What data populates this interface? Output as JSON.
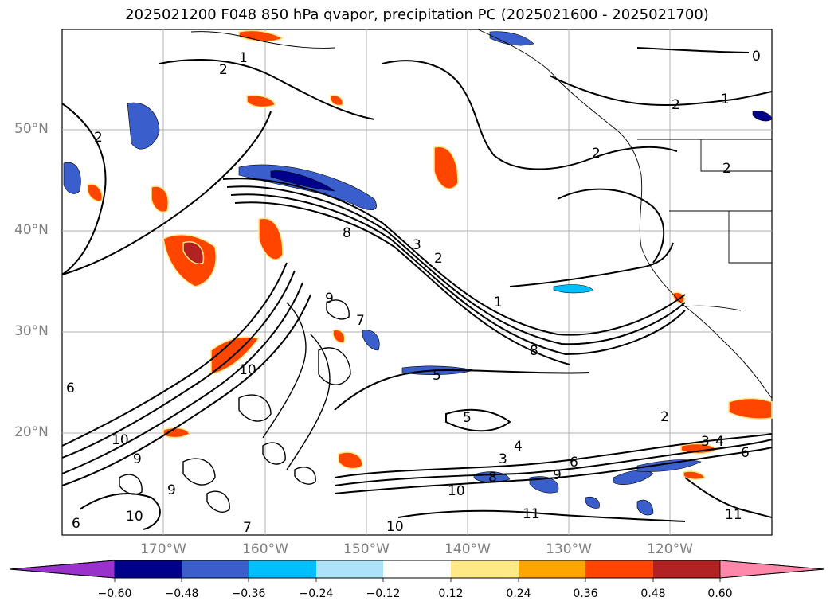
{
  "title": "2025021200 F048 850 hPa qvapor, precipitation PC (2025021600 - 2025021700)",
  "map": {
    "lat_labels": [
      "50°N",
      "40°N",
      "30°N",
      "20°N"
    ],
    "lon_labels": [
      "170°W",
      "160°W",
      "150°W",
      "140°W",
      "130°W",
      "120°W"
    ],
    "contour_labels": [
      "0",
      "1",
      "2",
      "2",
      "1",
      "2",
      "2",
      "2",
      "8",
      "2",
      "3",
      "1",
      "8",
      "9",
      "7",
      "10",
      "5",
      "6",
      "10",
      "9",
      "5",
      "4",
      "3",
      "6",
      "8",
      "9",
      "10",
      "11",
      "11",
      "2",
      "3",
      "4",
      "6",
      "6",
      "9",
      "10",
      "10",
      "7"
    ]
  },
  "colorbar": {
    "tick_labels": [
      "−0.60",
      "−0.48",
      "−0.36",
      "−0.24",
      "−0.12",
      "0.12",
      "0.24",
      "0.36",
      "0.48",
      "0.60"
    ],
    "colors": [
      "#9932CC",
      "#00008B",
      "#3A5FCD",
      "#00BFFF",
      "#ADE3FA",
      "#FFFFFF",
      "#FFE987",
      "#FFA500",
      "#FF4500",
      "#B22222",
      "#FF88AA"
    ]
  }
}
